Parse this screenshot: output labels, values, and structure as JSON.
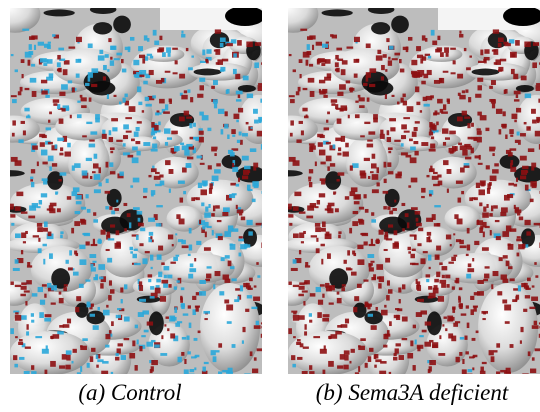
{
  "panels": [
    {
      "caption": "(a) Control"
    },
    {
      "caption": "(b) Sema3A deficient"
    }
  ]
}
